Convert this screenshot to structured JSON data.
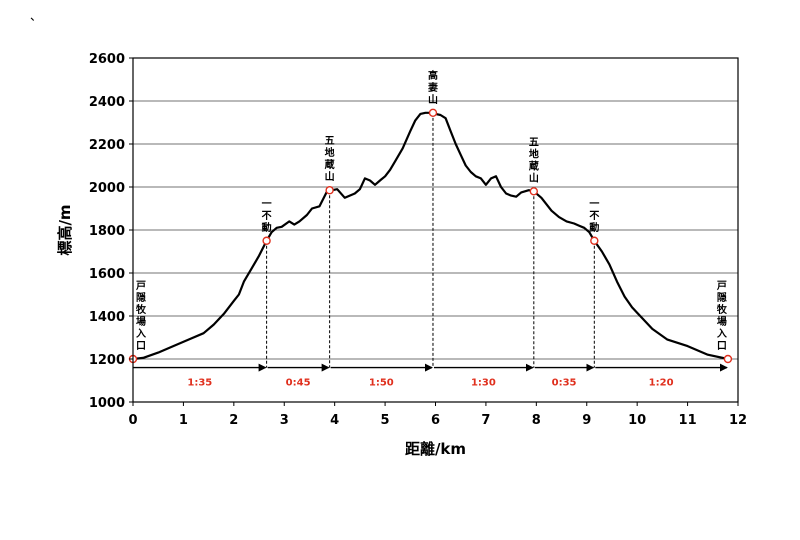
{
  "corner_mark": "、",
  "chart_data": {
    "type": "line",
    "title": "",
    "xlabel": "距離/km",
    "ylabel": "標高/m",
    "xlim": [
      0,
      12
    ],
    "ylim": [
      1000,
      2600
    ],
    "xticks": [
      0,
      1,
      2,
      3,
      4,
      5,
      6,
      7,
      8,
      9,
      10,
      11,
      12
    ],
    "yticks": [
      1000,
      1200,
      1400,
      1600,
      1800,
      2000,
      2200,
      2400,
      2600
    ],
    "grid": "horizontal",
    "colors": {
      "line": "#000000",
      "marker": "#e0301e",
      "segment_text": "#e0301e"
    },
    "profile": {
      "x": [
        0,
        0.2,
        0.5,
        0.8,
        1.1,
        1.4,
        1.6,
        1.8,
        2.0,
        2.1,
        2.2,
        2.35,
        2.5,
        2.65,
        2.75,
        2.85,
        2.95,
        3.1,
        3.2,
        3.3,
        3.45,
        3.55,
        3.7,
        3.85,
        3.95,
        4.05,
        4.2,
        4.3,
        4.4,
        4.5,
        4.6,
        4.7,
        4.8,
        4.9,
        5.0,
        5.1,
        5.2,
        5.35,
        5.5,
        5.6,
        5.7,
        5.8,
        5.9,
        6.0,
        6.1,
        6.2,
        6.3,
        6.4,
        6.5,
        6.6,
        6.7,
        6.8,
        6.9,
        7.0,
        7.1,
        7.2,
        7.3,
        7.4,
        7.5,
        7.6,
        7.7,
        7.85,
        7.95,
        8.1,
        8.2,
        8.3,
        8.45,
        8.6,
        8.75,
        8.85,
        8.95,
        9.05,
        9.15,
        9.3,
        9.45,
        9.6,
        9.75,
        9.9,
        10.1,
        10.3,
        10.6,
        11.0,
        11.4,
        11.8
      ],
      "y": [
        1200,
        1205,
        1230,
        1260,
        1290,
        1320,
        1360,
        1410,
        1470,
        1500,
        1560,
        1620,
        1680,
        1750,
        1790,
        1810,
        1815,
        1840,
        1825,
        1840,
        1870,
        1900,
        1910,
        1980,
        1985,
        1990,
        1950,
        1960,
        1970,
        1990,
        2040,
        2030,
        2010,
        2030,
        2050,
        2080,
        2120,
        2180,
        2260,
        2310,
        2340,
        2345,
        2345,
        2340,
        2335,
        2320,
        2260,
        2200,
        2150,
        2100,
        2070,
        2050,
        2040,
        2010,
        2040,
        2050,
        2000,
        1970,
        1960,
        1955,
        1975,
        1985,
        1980,
        1950,
        1920,
        1890,
        1860,
        1840,
        1830,
        1820,
        1810,
        1790,
        1750,
        1700,
        1640,
        1560,
        1490,
        1440,
        1390,
        1340,
        1290,
        1260,
        1220,
        1200
      ]
    },
    "markers": [
      {
        "name": "戸隠牧場入口",
        "x": 0,
        "y": 1200
      },
      {
        "name": "一不動",
        "x": 2.65,
        "y": 1750
      },
      {
        "name": "五地蔵山",
        "x": 3.9,
        "y": 1985
      },
      {
        "name": "高妻山",
        "x": 5.95,
        "y": 2345
      },
      {
        "name": "五地蔵山",
        "x": 7.95,
        "y": 1980
      },
      {
        "name": "一不動",
        "x": 9.15,
        "y": 1750
      },
      {
        "name": "戸隠牧場入口",
        "x": 11.8,
        "y": 1200
      }
    ],
    "segments": [
      {
        "from": 0,
        "to": 2.65,
        "time": "1:35"
      },
      {
        "from": 2.65,
        "to": 3.9,
        "time": "0:45"
      },
      {
        "from": 3.9,
        "to": 5.95,
        "time": "1:50"
      },
      {
        "from": 5.95,
        "to": 7.95,
        "time": "1:30"
      },
      {
        "from": 7.95,
        "to": 9.15,
        "time": "0:35"
      },
      {
        "from": 9.15,
        "to": 11.8,
        "time": "1:20"
      }
    ],
    "segment_arrow_y": 1160
  }
}
